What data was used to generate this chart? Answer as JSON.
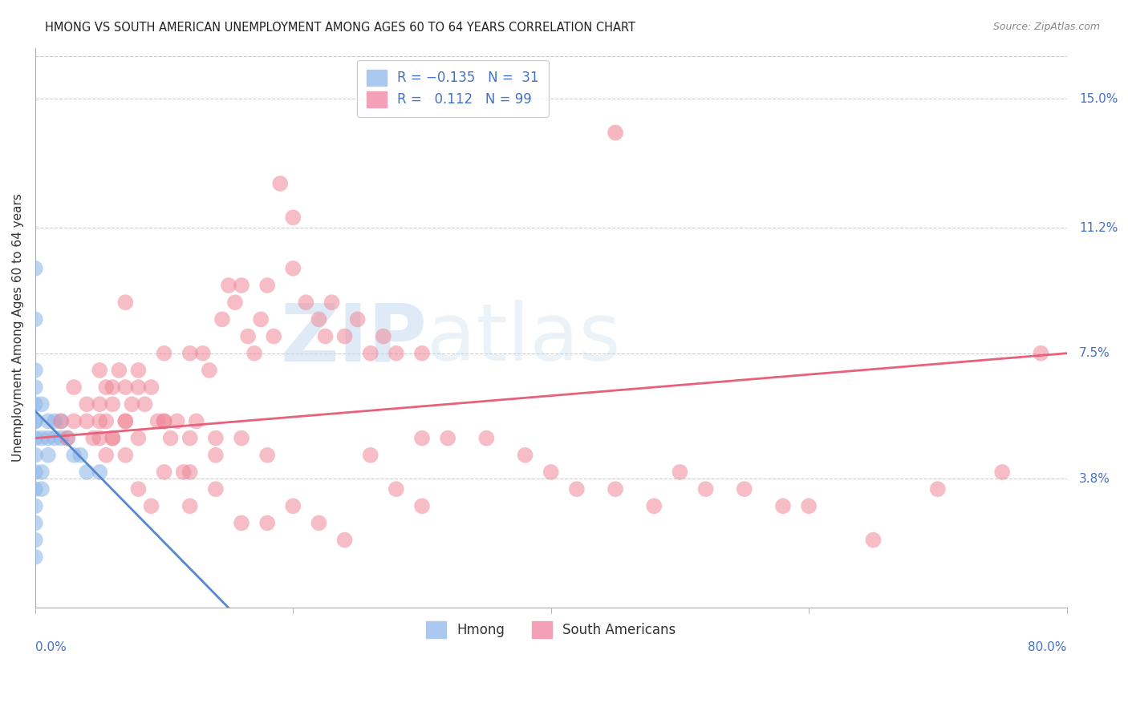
{
  "title": "HMONG VS SOUTH AMERICAN UNEMPLOYMENT AMONG AGES 60 TO 64 YEARS CORRELATION CHART",
  "source": "Source: ZipAtlas.com",
  "xlabel_bottom_left": "0.0%",
  "xlabel_bottom_right": "80.0%",
  "ylabel": "Unemployment Among Ages 60 to 64 years",
  "right_yticks": [
    3.8,
    7.5,
    11.2,
    15.0
  ],
  "right_ytick_labels": [
    "3.8%",
    "7.5%",
    "11.2%",
    "15.0%"
  ],
  "hmong_color": "#89b4e8",
  "south_american_color": "#f08898",
  "xmin": 0.0,
  "xmax": 80.0,
  "ymin": 0.0,
  "ymax": 16.5,
  "watermark_zip": "ZIP",
  "watermark_atlas": "atlas",
  "background_color": "#ffffff",
  "hmong_x": [
    0.0,
    0.0,
    0.0,
    0.0,
    0.0,
    0.0,
    0.0,
    0.0,
    0.0,
    0.0,
    0.0,
    0.0,
    0.0,
    0.0,
    0.0,
    0.5,
    0.5,
    0.5,
    0.5,
    1.0,
    1.0,
    1.0,
    1.5,
    1.5,
    2.0,
    2.0,
    2.5,
    3.0,
    3.5,
    4.0,
    5.0
  ],
  "hmong_y": [
    1.5,
    2.0,
    2.5,
    3.0,
    3.5,
    4.0,
    4.5,
    5.0,
    5.5,
    5.5,
    6.0,
    6.5,
    7.0,
    8.5,
    10.0,
    3.5,
    4.0,
    5.0,
    6.0,
    4.5,
    5.0,
    5.5,
    5.0,
    5.5,
    5.0,
    5.5,
    5.0,
    4.5,
    4.5,
    4.0,
    4.0
  ],
  "south_american_x": [
    2.0,
    2.5,
    3.0,
    4.0,
    4.5,
    5.0,
    5.0,
    5.5,
    5.5,
    6.0,
    6.0,
    6.5,
    7.0,
    7.0,
    7.0,
    7.5,
    8.0,
    8.0,
    8.5,
    9.0,
    9.5,
    10.0,
    10.0,
    10.5,
    11.0,
    11.5,
    12.0,
    12.0,
    12.5,
    13.0,
    13.5,
    14.0,
    14.5,
    15.0,
    15.5,
    16.0,
    16.5,
    17.0,
    17.5,
    18.0,
    18.5,
    19.0,
    20.0,
    20.0,
    21.0,
    22.0,
    22.5,
    23.0,
    24.0,
    25.0,
    26.0,
    27.0,
    28.0,
    30.0,
    30.0,
    32.0,
    35.0,
    38.0,
    40.0,
    42.0,
    45.0,
    48.0,
    50.0,
    52.0,
    55.0,
    58.0,
    60.0,
    65.0,
    70.0,
    75.0,
    78.0,
    5.0,
    5.5,
    6.0,
    7.0,
    8.0,
    9.0,
    10.0,
    12.0,
    14.0,
    16.0,
    18.0,
    20.0,
    22.0,
    24.0,
    26.0,
    28.0,
    30.0,
    3.0,
    4.0,
    5.0,
    6.0,
    7.0,
    8.0,
    10.0,
    12.0,
    14.0,
    16.0,
    18.0
  ],
  "south_american_y": [
    5.5,
    5.0,
    6.5,
    5.5,
    5.0,
    6.0,
    7.0,
    5.5,
    6.5,
    5.0,
    6.0,
    7.0,
    5.5,
    6.5,
    9.0,
    6.0,
    5.0,
    7.0,
    6.0,
    6.5,
    5.5,
    5.5,
    7.5,
    5.0,
    5.5,
    4.0,
    5.0,
    7.5,
    5.5,
    7.5,
    7.0,
    5.0,
    8.5,
    9.5,
    9.0,
    9.5,
    8.0,
    7.5,
    8.5,
    9.5,
    8.0,
    12.5,
    11.5,
    10.0,
    9.0,
    8.5,
    8.0,
    9.0,
    8.0,
    8.5,
    7.5,
    8.0,
    7.5,
    5.0,
    7.5,
    5.0,
    5.0,
    4.5,
    4.0,
    3.5,
    3.5,
    3.0,
    4.0,
    3.5,
    3.5,
    3.0,
    3.0,
    2.0,
    3.5,
    4.0,
    7.5,
    5.0,
    4.5,
    5.0,
    4.5,
    3.5,
    3.0,
    4.0,
    3.0,
    3.5,
    2.5,
    2.5,
    3.0,
    2.5,
    2.0,
    4.5,
    3.5,
    3.0,
    5.5,
    6.0,
    5.5,
    6.5,
    5.5,
    6.5,
    5.5,
    4.0,
    4.5,
    5.0,
    4.5
  ],
  "south_american_lone_x": [
    45.0
  ],
  "south_american_lone_y": [
    14.0
  ],
  "south_reg_x0": 0.0,
  "south_reg_y0": 5.0,
  "south_reg_x1": 80.0,
  "south_reg_y1": 7.5,
  "hmong_reg_x0": 0.0,
  "hmong_reg_y0": 5.8,
  "hmong_reg_x1": 15.0,
  "hmong_reg_y1": 0.0
}
